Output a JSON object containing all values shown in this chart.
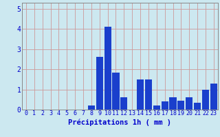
{
  "hours": [
    0,
    1,
    2,
    3,
    4,
    5,
    6,
    7,
    8,
    9,
    10,
    11,
    12,
    13,
    14,
    15,
    16,
    17,
    18,
    19,
    20,
    21,
    22,
    23
  ],
  "values": [
    0,
    0,
    0,
    0,
    0,
    0,
    0,
    0,
    0.2,
    2.6,
    4.1,
    1.85,
    0.6,
    0,
    1.5,
    1.5,
    0.2,
    0.4,
    0.6,
    0.45,
    0.6,
    0.35,
    1.0,
    1.3
  ],
  "bar_color": "#1a3fcc",
  "background_color": "#cce8f0",
  "grid_color": "#aaaacc",
  "text_color": "#0000cc",
  "xlabel": "Précipitations 1h ( mm )",
  "ylim": [
    0,
    5.3
  ],
  "yticks": [
    0,
    1,
    2,
    3,
    4,
    5
  ],
  "tick_fontsize": 6,
  "label_fontsize": 7.5
}
